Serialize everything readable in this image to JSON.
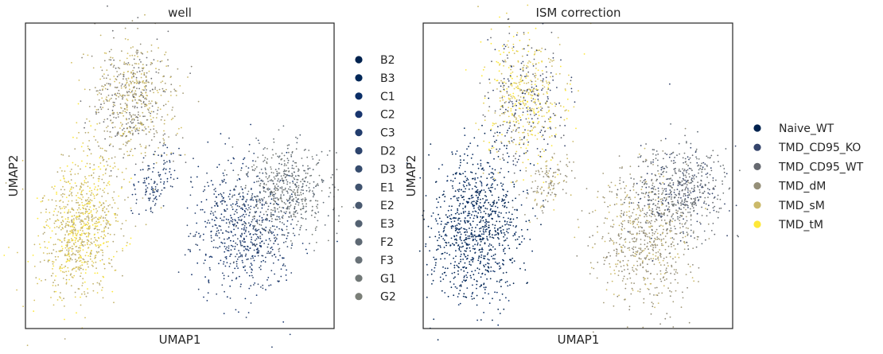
{
  "chart_data": [
    {
      "type": "scatter",
      "title": "well",
      "xlabel": "UMAP1",
      "ylabel": "UMAP2",
      "grid": false,
      "ticks": false,
      "legend_position": "right",
      "series": [
        {
          "name": "B2",
          "color": "#00224e"
        },
        {
          "name": "B3",
          "color": "#002758"
        },
        {
          "name": "C1",
          "color": "#0a2e67"
        },
        {
          "name": "C2",
          "color": "#18356e"
        },
        {
          "name": "C3",
          "color": "#223d6d"
        },
        {
          "name": "D2",
          "color": "#2d446d"
        },
        {
          "name": "D3",
          "color": "#364c6e"
        },
        {
          "name": "E1",
          "color": "#40536f"
        },
        {
          "name": "E2",
          "color": "#4a5a70"
        },
        {
          "name": "E3",
          "color": "#546272"
        },
        {
          "name": "F2",
          "color": "#5e6974"
        },
        {
          "name": "F3",
          "color": "#687177"
        },
        {
          "name": "G1",
          "color": "#717877"
        },
        {
          "name": "G2",
          "color": "#7b7f78"
        }
      ]
    },
    {
      "type": "scatter",
      "title": "ISM correction",
      "xlabel": "UMAP1",
      "ylabel": "UMAP2",
      "grid": false,
      "ticks": false,
      "legend_position": "right",
      "series": [
        {
          "name": "Naive_WT",
          "color": "#00224e"
        },
        {
          "name": "TMD_CD95_KO",
          "color": "#35456c"
        },
        {
          "name": "TMD_CD95_WT",
          "color": "#666970"
        },
        {
          "name": "TMD_dM",
          "color": "#958f78"
        },
        {
          "name": "TMD_sM",
          "color": "#cbb969"
        },
        {
          "name": "TMD_tM",
          "color": "#fee838"
        }
      ]
    }
  ]
}
